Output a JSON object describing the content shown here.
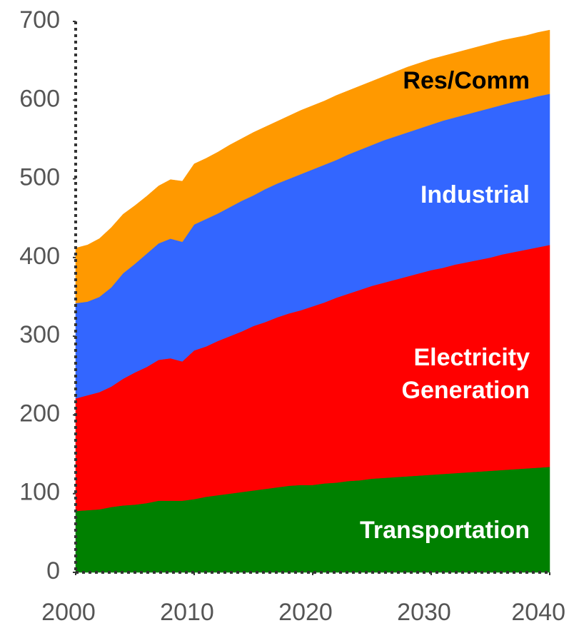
{
  "chart_data": {
    "type": "stacked_area",
    "x": [
      2000,
      2001,
      2002,
      2003,
      2004,
      2005,
      2006,
      2007,
      2008,
      2009,
      2010,
      2011,
      2012,
      2013,
      2014,
      2015,
      2016,
      2017,
      2018,
      2019,
      2020,
      2021,
      2022,
      2023,
      2024,
      2025,
      2026,
      2027,
      2028,
      2029,
      2030,
      2031,
      2032,
      2033,
      2034,
      2035,
      2036,
      2037,
      2038,
      2039,
      2040
    ],
    "series": [
      {
        "name": "Transportation",
        "color": "#008000",
        "label_color": "#ffffff",
        "values": [
          78,
          79,
          80,
          83,
          85,
          86,
          88,
          91,
          91,
          91,
          93,
          96,
          98,
          100,
          102,
          104,
          106,
          108,
          110,
          111,
          111,
          113,
          114,
          116,
          117,
          119,
          120,
          121,
          122,
          123,
          124,
          125,
          126,
          127,
          128,
          129,
          130,
          131,
          132,
          133,
          134
        ]
      },
      {
        "name": "Electricity Generation",
        "color": "#ff0000",
        "label_color": "#ffffff",
        "values": [
          143,
          146,
          149,
          153,
          161,
          168,
          173,
          179,
          181,
          177,
          189,
          191,
          196,
          200,
          204,
          209,
          212,
          216,
          219,
          222,
          227,
          230,
          235,
          238,
          242,
          245,
          248,
          251,
          254,
          257,
          260,
          262,
          265,
          267,
          269,
          271,
          274,
          276,
          278,
          280,
          282
        ]
      },
      {
        "name": "Industrial",
        "color": "#3366ff",
        "label_color": "#ffffff",
        "values": [
          121,
          119,
          121,
          126,
          134,
          138,
          144,
          148,
          152,
          152,
          160,
          162,
          162,
          164,
          166,
          166,
          169,
          170,
          171,
          173,
          174,
          175,
          175,
          177,
          178,
          179,
          181,
          182,
          183,
          184,
          185,
          187,
          187,
          188,
          189,
          190,
          190,
          191,
          191,
          192,
          192
        ]
      },
      {
        "name": "Res/Comm",
        "color": "#ff9900",
        "label_color": "#000000",
        "values": [
          70,
          72,
          74,
          76,
          75,
          74,
          73,
          73,
          75,
          77,
          77,
          77,
          78,
          79,
          79,
          80,
          79,
          79,
          80,
          81,
          81,
          81,
          82,
          81,
          81,
          81,
          81,
          82,
          83,
          83,
          83,
          82,
          82,
          82,
          82,
          82,
          82,
          81,
          81,
          81,
          81
        ]
      }
    ],
    "xlim": [
      2000,
      2040
    ],
    "xticks": [
      2000,
      2010,
      2020,
      2030,
      2040
    ],
    "ylim": [
      0,
      700
    ],
    "yticks": [
      0,
      100,
      200,
      300,
      400,
      500,
      600,
      700
    ],
    "grid": false
  }
}
